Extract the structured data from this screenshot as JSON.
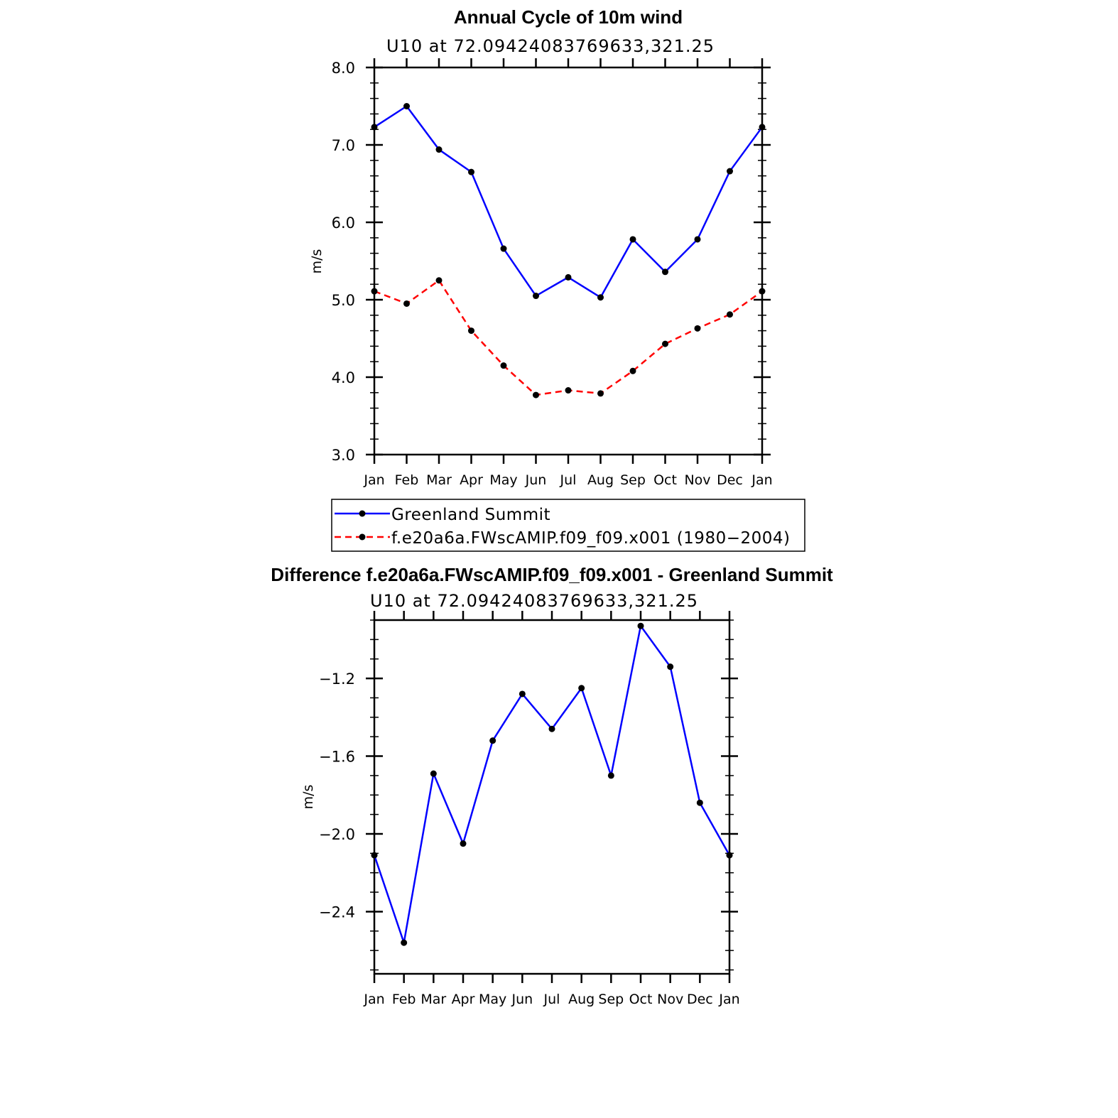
{
  "chart_data": [
    {
      "type": "line",
      "title": "Annual Cycle of 10m wind",
      "subtitle": "U10  at  72.09424083769633,321.25",
      "ylabel": "m/s",
      "xlabel": "",
      "categories": [
        "Jan",
        "Feb",
        "Mar",
        "Apr",
        "May",
        "Jun",
        "Jul",
        "Aug",
        "Sep",
        "Oct",
        "Nov",
        "Dec",
        "Jan"
      ],
      "ylim": [
        3.0,
        8.0
      ],
      "yticks": [
        "3.0",
        "4.0",
        "5.0",
        "6.0",
        "7.0",
        "8.0"
      ],
      "series": [
        {
          "name": "Greenland Summit",
          "color": "#0000ff",
          "style": "solid",
          "values": [
            7.23,
            7.5,
            6.94,
            6.65,
            5.66,
            5.05,
            5.29,
            5.03,
            5.78,
            5.36,
            5.78,
            6.66,
            7.23
          ]
        },
        {
          "name": "f.e20a6a.FWscAMIP.f09_f09.x001 (1980−2004)",
          "color": "#ff0000",
          "style": "dashed",
          "values": [
            5.11,
            4.95,
            5.25,
            4.6,
            4.15,
            3.77,
            3.83,
            3.79,
            4.08,
            4.43,
            4.63,
            4.81,
            5.11
          ]
        }
      ],
      "legend": "bottom"
    },
    {
      "type": "line",
      "title": "Difference f.e20a6a.FWscAMIP.f09_f09.x001 - Greenland Summit",
      "subtitle": "U10  at  72.09424083769633,321.25",
      "ylabel": "m/s",
      "xlabel": "",
      "categories": [
        "Jan",
        "Feb",
        "Mar",
        "Apr",
        "May",
        "Jun",
        "Jul",
        "Aug",
        "Sep",
        "Oct",
        "Nov",
        "Dec",
        "Jan"
      ],
      "ylim": [
        -2.72,
        -0.9
      ],
      "yticks": [
        "−2.4",
        "−2.0",
        "−1.6",
        "−1.2"
      ],
      "ytick_values": [
        -2.4,
        -2.0,
        -1.6,
        -1.2
      ],
      "series": [
        {
          "name": "Difference",
          "color": "#0000ff",
          "style": "solid",
          "values": [
            -2.11,
            -2.56,
            -1.69,
            -2.05,
            -1.52,
            -1.28,
            -1.46,
            -1.25,
            -1.7,
            -0.93,
            -1.14,
            -1.84,
            -2.11
          ]
        }
      ]
    }
  ]
}
